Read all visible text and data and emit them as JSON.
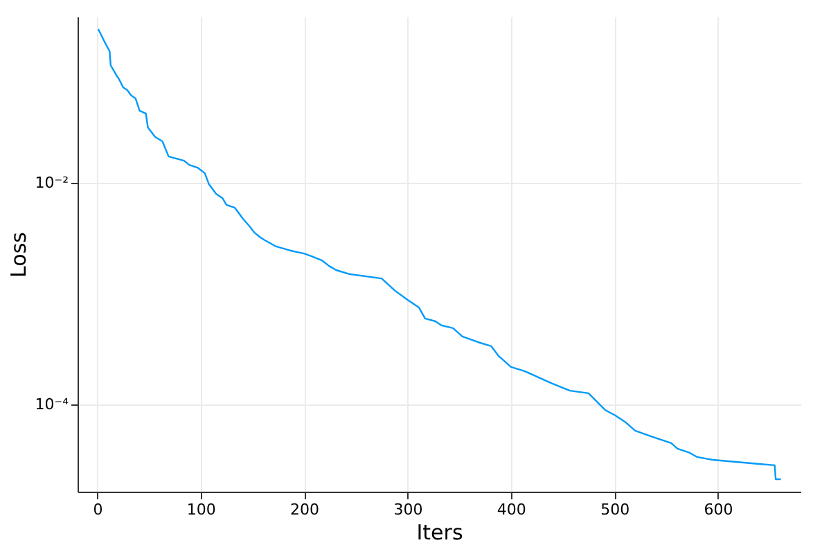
{
  "chart_data": {
    "type": "line",
    "xlabel": "Iters",
    "ylabel": "Loss",
    "log": "y",
    "grid": true,
    "marker": "none",
    "line_style": "solid",
    "xlim": [
      -19,
      680
    ],
    "ylim": [
      1.63e-05,
      0.316
    ],
    "xticks": [
      0,
      100,
      200,
      300,
      400,
      500,
      600
    ],
    "yticks": [
      {
        "value": 0.01,
        "label": "10⁻²"
      },
      {
        "value": 0.0001,
        "label": "10⁻⁴"
      }
    ],
    "series": [
      {
        "color": "#009af9",
        "x": [
          1,
          7,
          12,
          13,
          19,
          21,
          25,
          29,
          33,
          37,
          41,
          47,
          49,
          56,
          63,
          69,
          84,
          89,
          97,
          104,
          108,
          115,
          121,
          125,
          133,
          141,
          148,
          152,
          157,
          161,
          173,
          187,
          200,
          207,
          217,
          224,
          231,
          244,
          275,
          288,
          301,
          311,
          317,
          327,
          333,
          344,
          353,
          368,
          381,
          388,
          400,
          413,
          428,
          440,
          457,
          475,
          491,
          501,
          511,
          520,
          535,
          555,
          561,
          573,
          580,
          595,
          640,
          655,
          656,
          661
        ],
        "values": [
          0.244,
          0.188,
          0.154,
          0.115,
          0.0918,
          0.0866,
          0.0729,
          0.0688,
          0.0613,
          0.0579,
          0.0447,
          0.0422,
          0.0316,
          0.0259,
          0.0237,
          0.0173,
          0.0158,
          0.0145,
          0.0137,
          0.0122,
          0.00972,
          0.00794,
          0.00729,
          0.00631,
          0.00596,
          0.00473,
          0.00398,
          0.00355,
          0.00325,
          0.00307,
          0.00266,
          0.00244,
          0.0023,
          0.00218,
          0.002,
          0.00178,
          0.00163,
          0.0015,
          0.00137,
          0.00106,
          0.000866,
          0.00075,
          0.000596,
          0.000562,
          0.000516,
          0.000487,
          0.00041,
          0.000365,
          0.000335,
          0.000274,
          0.000218,
          0.0002,
          0.000173,
          0.000154,
          0.000133,
          0.000126,
          8.91e-05,
          7.94e-05,
          6.88e-05,
          5.79e-05,
          5.16e-05,
          4.47e-05,
          3.98e-05,
          3.65e-05,
          3.35e-05,
          3.16e-05,
          2.9e-05,
          2.82e-05,
          2.11e-05,
          2.11e-05
        ]
      }
    ]
  }
}
